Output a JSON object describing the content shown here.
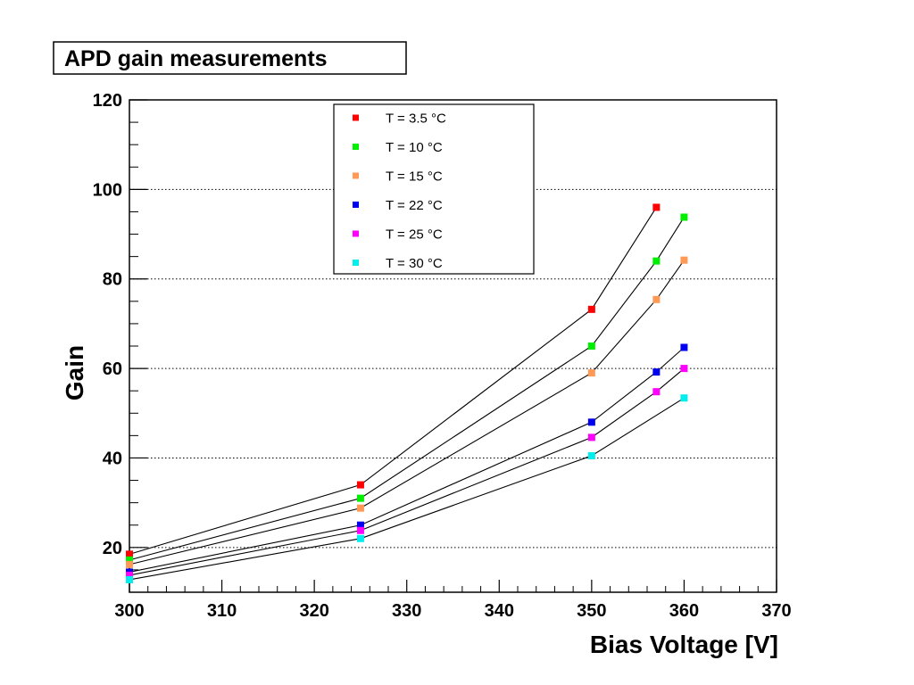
{
  "chart_data": {
    "type": "scatter",
    "title": "APD gain measurements",
    "xlabel": "Bias Voltage [V]",
    "ylabel": "Gain",
    "xlim": [
      300,
      370
    ],
    "ylim": [
      10,
      120
    ],
    "x_ticks": [
      300,
      310,
      320,
      330,
      340,
      350,
      360,
      370
    ],
    "y_ticks": [
      20,
      40,
      60,
      80,
      100,
      120
    ],
    "grid": "horizontal-dotted",
    "connect_points": true,
    "line_color": "#000000",
    "legend_position": "top-center",
    "series": [
      {
        "name": "T = 3.5 °C",
        "color": "#ff0000",
        "x": [
          300,
          325,
          350,
          357,
          360
        ],
        "y": [
          18.5,
          34,
          73.2,
          96,
          null
        ]
      },
      {
        "name": "T = 10 °C",
        "color": "#00ee00",
        "x": [
          300,
          325,
          350,
          357,
          360
        ],
        "y": [
          17.2,
          31,
          65,
          84,
          93.8
        ]
      },
      {
        "name": "T = 15 °C",
        "color": "#ff9955",
        "x": [
          300,
          325,
          350,
          357,
          360
        ],
        "y": [
          16.2,
          28.8,
          59,
          75.4,
          84.2
        ]
      },
      {
        "name": "T = 22 °C",
        "color": "#0000ee",
        "x": [
          300,
          325,
          350,
          357,
          360
        ],
        "y": [
          14.5,
          25,
          48,
          59.2,
          64.7
        ]
      },
      {
        "name": "T = 25 °C",
        "color": "#ff00ff",
        "x": [
          300,
          325,
          350,
          357,
          360
        ],
        "y": [
          13.8,
          23.8,
          44.6,
          54.8,
          60
        ]
      },
      {
        "name": "T = 30 °C",
        "color": "#00eeee",
        "x": [
          300,
          325,
          350,
          357,
          360
        ],
        "y": [
          12.8,
          22,
          40.5,
          null,
          53.4
        ]
      }
    ]
  }
}
